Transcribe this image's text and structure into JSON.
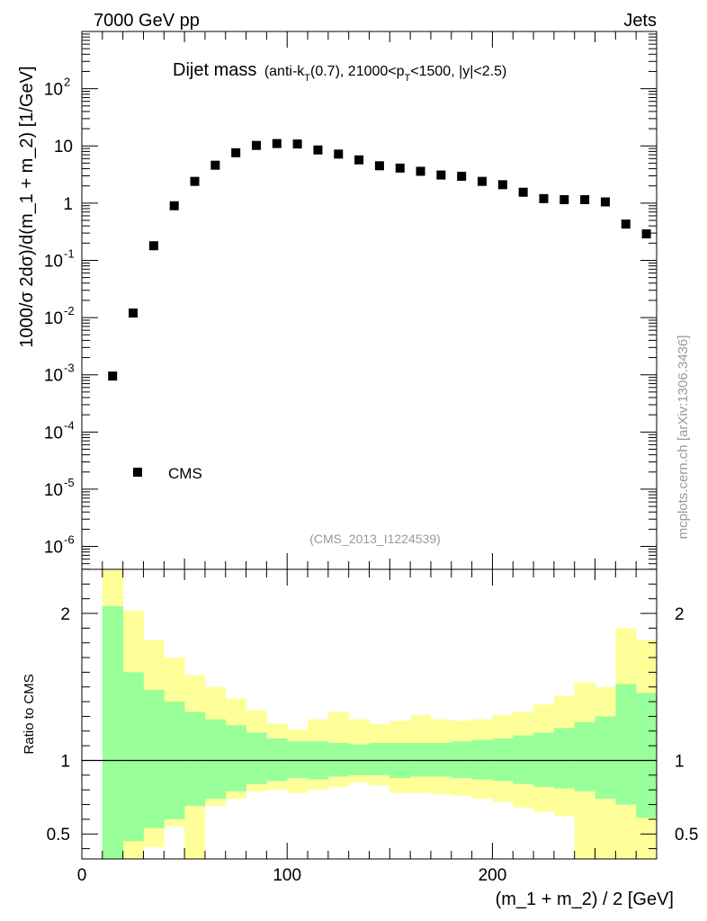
{
  "header": {
    "left": "7000 GeV pp",
    "right": "Jets"
  },
  "chart_data": {
    "type": "scatter",
    "title": {
      "main": "Dijet mass",
      "detail_prefix": "(anti-k",
      "detail_sub1": "T",
      "detail_mid": "(0.7), 21000<p",
      "detail_sub2": "T",
      "detail_suffix": "<1500, |y|<2.5)"
    },
    "watermark": "(CMS_2013_I1224539)",
    "side_label": "mcplots.cern.ch [arXiv:1306.3436]",
    "xlabel": "(m_1 + m_2) / 2 [GeV]",
    "ylabel": "1000/σ 2dσ)/d(m_1 + m_2) [1/GeV]",
    "ratio_ylabel": "Ratio to CMS",
    "xlim": [
      0,
      280
    ],
    "ylim_log10": [
      -6.4,
      3.0
    ],
    "ratio_ylim": [
      0.33,
      2.3
    ],
    "x_ticks": [
      "0",
      "100",
      "200"
    ],
    "y_ticks": [
      {
        "base": "10",
        "exp": "-6",
        "value": 1e-06
      },
      {
        "base": "10",
        "exp": "-5",
        "value": 1e-05
      },
      {
        "base": "10",
        "exp": "-4",
        "value": 0.0001
      },
      {
        "base": "10",
        "exp": "-3",
        "value": 0.001
      },
      {
        "base": "10",
        "exp": "-2",
        "value": 0.01
      },
      {
        "base": "10",
        "exp": "-1",
        "value": 0.1
      },
      {
        "base": "1",
        "exp": "",
        "value": 1
      },
      {
        "base": "10",
        "exp": "",
        "value": 10
      },
      {
        "base": "10",
        "exp": "2",
        "value": 100
      }
    ],
    "ratio_ticks": [
      "0.5",
      "1",
      "2"
    ],
    "legend": [
      {
        "label": "CMS",
        "marker": "square",
        "position": "bottom-left"
      }
    ],
    "series": [
      {
        "name": "CMS",
        "x": [
          15,
          25,
          35,
          45,
          55,
          65,
          75,
          85,
          95,
          105,
          115,
          125,
          135,
          145,
          155,
          165,
          175,
          185,
          195,
          205,
          215,
          225,
          235,
          245,
          255,
          265,
          275
        ],
        "y": [
          0.00095,
          0.012,
          0.18,
          0.9,
          2.4,
          4.6,
          7.6,
          10.2,
          11.0,
          10.8,
          8.5,
          7.2,
          5.7,
          4.5,
          4.1,
          3.6,
          3.1,
          2.95,
          2.4,
          2.1,
          1.55,
          1.2,
          1.15,
          1.15,
          1.05,
          0.43,
          0.29
        ]
      }
    ],
    "ratio_bands": {
      "bin_edges": [
        10,
        20,
        30,
        40,
        50,
        60,
        70,
        80,
        90,
        100,
        110,
        120,
        130,
        140,
        150,
        160,
        170,
        180,
        190,
        200,
        210,
        220,
        230,
        240,
        250,
        260,
        270,
        280
      ],
      "green_band": {
        "color": "#99ff99",
        "upper": [
          2.05,
          1.6,
          1.48,
          1.4,
          1.33,
          1.28,
          1.24,
          1.19,
          1.15,
          1.13,
          1.13,
          1.12,
          1.11,
          1.12,
          1.12,
          1.12,
          1.12,
          1.13,
          1.14,
          1.15,
          1.17,
          1.19,
          1.22,
          1.26,
          1.3,
          1.52,
          1.46
        ],
        "lower": [
          0.33,
          0.45,
          0.54,
          0.6,
          0.69,
          0.74,
          0.79,
          0.84,
          0.86,
          0.88,
          0.87,
          0.89,
          0.9,
          0.9,
          0.88,
          0.89,
          0.89,
          0.88,
          0.87,
          0.86,
          0.84,
          0.82,
          0.81,
          0.79,
          0.74,
          0.7,
          0.61
        ]
      },
      "yellow_band": {
        "color": "#ffff99",
        "upper": [
          2.3,
          2.02,
          1.82,
          1.7,
          1.58,
          1.5,
          1.42,
          1.34,
          1.25,
          1.21,
          1.28,
          1.33,
          1.28,
          1.25,
          1.27,
          1.31,
          1.28,
          1.27,
          1.28,
          1.31,
          1.33,
          1.38,
          1.44,
          1.53,
          1.5,
          1.9,
          1.82
        ],
        "lower": [
          0.33,
          0.33,
          0.41,
          0.55,
          0.33,
          0.69,
          0.74,
          0.79,
          0.8,
          0.78,
          0.8,
          0.82,
          0.85,
          0.83,
          0.78,
          0.78,
          0.77,
          0.76,
          0.74,
          0.72,
          0.68,
          0.65,
          0.62,
          0.33,
          0.33,
          0.33,
          0.33
        ]
      }
    }
  }
}
